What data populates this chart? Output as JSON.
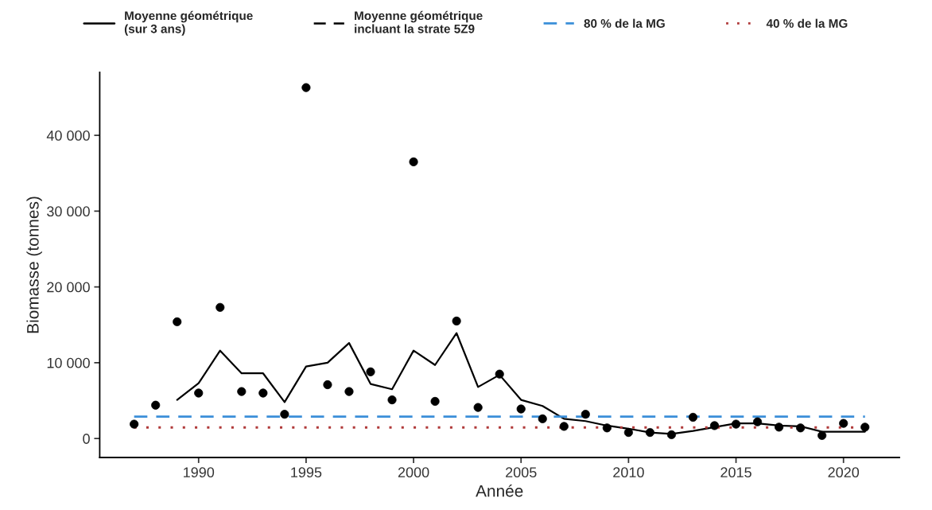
{
  "chart_data": {
    "type": "line",
    "xlabel": "Année",
    "ylabel": "Biomasse (tonnes)",
    "x": [
      1987,
      1988,
      1989,
      1990,
      1991,
      1992,
      1993,
      1994,
      1995,
      1996,
      1997,
      1998,
      1999,
      2000,
      2001,
      2002,
      2003,
      2004,
      2005,
      2006,
      2007,
      2008,
      2009,
      2010,
      2011,
      2012,
      2013,
      2014,
      2015,
      2016,
      2017,
      2018,
      2019,
      2020,
      2021
    ],
    "series": [
      {
        "type": "scatter",
        "color": "#000000",
        "marker": "circle",
        "values": [
          1900,
          4400,
          15400,
          6000,
          17300,
          6200,
          6000,
          3200,
          46300,
          7100,
          6200,
          8800,
          5100,
          36500,
          4900,
          15500,
          4100,
          8500,
          3900,
          2600,
          1600,
          3200,
          1400,
          800,
          800,
          500,
          2800,
          1700,
          1900,
          2200,
          1500,
          1400,
          400,
          2000,
          1500
        ]
      },
      {
        "name": "Moyenne géométrique\n(sur 3 ans)",
        "color": "#000000",
        "line_style": "solid",
        "values": [
          null,
          null,
          5100,
          7300,
          11600,
          8600,
          8600,
          4800,
          9500,
          10000,
          12600,
          7200,
          6500,
          11600,
          9700,
          13900,
          6800,
          8400,
          5100,
          4300,
          2600,
          2300,
          1700,
          1300,
          800,
          600,
          1000,
          1500,
          2000,
          2000,
          1700,
          1600,
          900,
          900,
          900
        ]
      },
      {
        "type": "line",
        "name": "Moyenne géométrique\nincluant la strate 5Z9",
        "color": "#000000",
        "line_style": "dashed",
        "values": [
          null,
          null,
          null,
          null,
          null,
          null,
          null,
          null,
          null,
          null,
          null,
          null,
          null,
          null,
          null,
          null,
          null,
          null,
          null,
          null,
          null,
          null,
          null,
          null,
          null,
          null,
          null,
          null,
          null,
          null,
          null,
          null,
          null,
          null,
          null
        ]
      }
    ],
    "ref_lines": [
      {
        "axis": "y",
        "value": 2900,
        "label": "80 % de la MG",
        "color": "#3b8fd9",
        "line_style": "dashed"
      },
      {
        "axis": "y",
        "value": 1450,
        "label": "40 % de la MG",
        "color": "#b03a3a",
        "line_style": "dotted"
      }
    ],
    "xlim": [
      1985.4,
      2022.6
    ],
    "xticks": [
      1990,
      1995,
      2000,
      2005,
      2010,
      2015,
      2020
    ],
    "ylim": [
      -2500,
      48300
    ],
    "yticks": [
      {
        "value": 0,
        "label": "0"
      },
      {
        "value": 10000,
        "label": "10 000"
      },
      {
        "value": 20000,
        "label": "20 000"
      },
      {
        "value": 30000,
        "label": "30 000"
      },
      {
        "value": 40000,
        "label": "40 000"
      }
    ],
    "grid": false,
    "legend": "top"
  }
}
